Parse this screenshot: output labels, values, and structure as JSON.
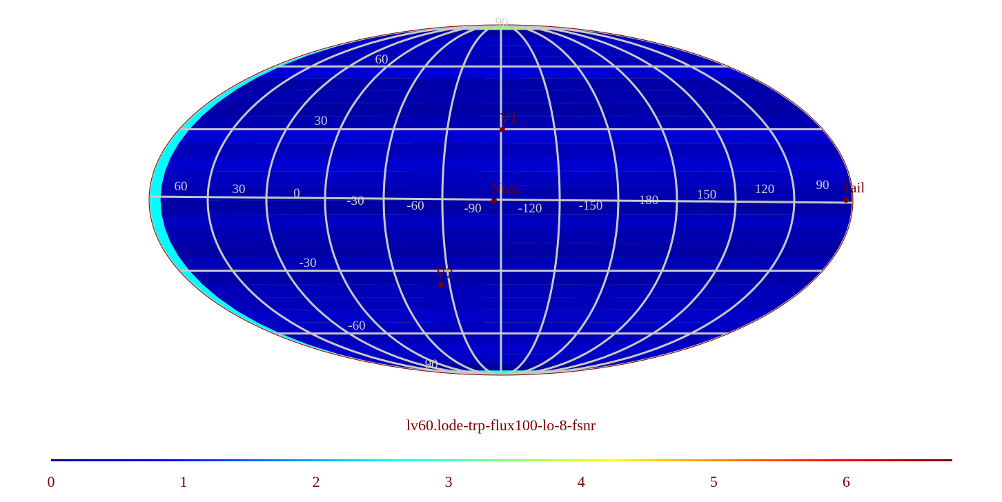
{
  "title": "lv60.lode-trp-flux100-lo-8-fsnr",
  "colors": {
    "text": "#7a0000",
    "grid": "#c8c8c8",
    "marker": "#7a0000",
    "colormap": [
      "#00008f",
      "#0000ff",
      "#0080ff",
      "#00ffff",
      "#80ff80",
      "#ffff00",
      "#ff8000",
      "#ff0000",
      "#800000"
    ]
  },
  "map": {
    "projection": "mollweide",
    "center_longitude": 0,
    "longitude_direction": "decreasing-to-right",
    "longitude_labels": [
      "60",
      "30",
      "0",
      "-30",
      "-60",
      "-90",
      "-120",
      "-150",
      "180",
      "150",
      "120",
      "90"
    ],
    "latitude_labels": [
      "90",
      "60",
      "30",
      "-30",
      "-60",
      "-90"
    ],
    "markers": [
      {
        "name": "V1",
        "lon": 255,
        "lat": 34
      },
      {
        "name": "Nose",
        "lon": 255,
        "lat": 5
      },
      {
        "name": "V2",
        "lon": 289,
        "lat": -32
      },
      {
        "name": "Tail",
        "lon": 75,
        "lat": -5
      }
    ]
  },
  "colorbar": {
    "min": 0,
    "max": 6.8,
    "ticks": [
      "0",
      "1",
      "2",
      "3",
      "4",
      "5",
      "6"
    ]
  }
}
